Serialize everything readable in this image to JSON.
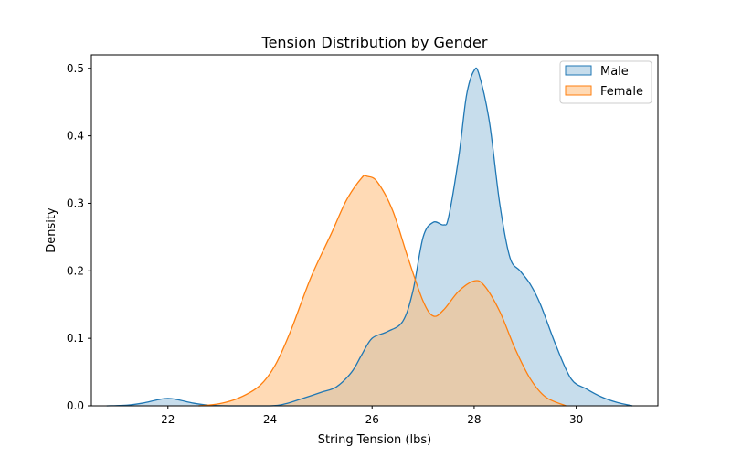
{
  "chart_data": {
    "type": "area",
    "title": "Tension Distribution by Gender",
    "xlabel": "String Tension (lbs)",
    "ylabel": "Density",
    "xlim": [
      20.5,
      31.6
    ],
    "ylim": [
      0,
      0.52
    ],
    "xticks": [
      22,
      24,
      26,
      28,
      30
    ],
    "yticks": [
      0.0,
      0.1,
      0.2,
      0.3,
      0.4,
      0.5
    ],
    "legend_position": "top-right",
    "grid": false,
    "series": [
      {
        "name": "Male",
        "line_color": "#1f77b4",
        "fill_color": "#1f77b4",
        "points": [
          [
            20.8,
            0.0
          ],
          [
            21.2,
            0.001
          ],
          [
            21.5,
            0.004
          ],
          [
            21.8,
            0.009
          ],
          [
            22.0,
            0.011
          ],
          [
            22.2,
            0.009
          ],
          [
            22.5,
            0.004
          ],
          [
            22.8,
            0.001
          ],
          [
            23.2,
            0.0
          ],
          [
            24.0,
            0.0
          ],
          [
            24.3,
            0.003
          ],
          [
            24.6,
            0.01
          ],
          [
            25.0,
            0.02
          ],
          [
            25.3,
            0.028
          ],
          [
            25.6,
            0.05
          ],
          [
            25.8,
            0.076
          ],
          [
            26.0,
            0.1
          ],
          [
            26.3,
            0.11
          ],
          [
            26.6,
            0.125
          ],
          [
            26.8,
            0.17
          ],
          [
            27.0,
            0.25
          ],
          [
            27.2,
            0.272
          ],
          [
            27.4,
            0.268
          ],
          [
            27.5,
            0.28
          ],
          [
            27.7,
            0.37
          ],
          [
            27.85,
            0.46
          ],
          [
            28.0,
            0.497
          ],
          [
            28.1,
            0.49
          ],
          [
            28.3,
            0.42
          ],
          [
            28.5,
            0.3
          ],
          [
            28.7,
            0.22
          ],
          [
            28.9,
            0.2
          ],
          [
            29.1,
            0.18
          ],
          [
            29.3,
            0.15
          ],
          [
            29.6,
            0.09
          ],
          [
            29.9,
            0.04
          ],
          [
            30.2,
            0.025
          ],
          [
            30.5,
            0.013
          ],
          [
            30.8,
            0.005
          ],
          [
            31.1,
            0.0
          ]
        ]
      },
      {
        "name": "Female",
        "line_color": "#ff7f0e",
        "fill_color": "#ffbb78",
        "points": [
          [
            22.6,
            0.0
          ],
          [
            23.0,
            0.003
          ],
          [
            23.4,
            0.012
          ],
          [
            23.8,
            0.03
          ],
          [
            24.1,
            0.06
          ],
          [
            24.4,
            0.11
          ],
          [
            24.8,
            0.19
          ],
          [
            25.2,
            0.255
          ],
          [
            25.5,
            0.305
          ],
          [
            25.8,
            0.338
          ],
          [
            25.9,
            0.34
          ],
          [
            26.1,
            0.332
          ],
          [
            26.4,
            0.29
          ],
          [
            26.7,
            0.22
          ],
          [
            27.0,
            0.155
          ],
          [
            27.2,
            0.133
          ],
          [
            27.4,
            0.142
          ],
          [
            27.7,
            0.17
          ],
          [
            28.0,
            0.185
          ],
          [
            28.2,
            0.178
          ],
          [
            28.5,
            0.14
          ],
          [
            28.8,
            0.085
          ],
          [
            29.1,
            0.04
          ],
          [
            29.4,
            0.013
          ],
          [
            29.8,
            0.0
          ]
        ]
      }
    ]
  }
}
